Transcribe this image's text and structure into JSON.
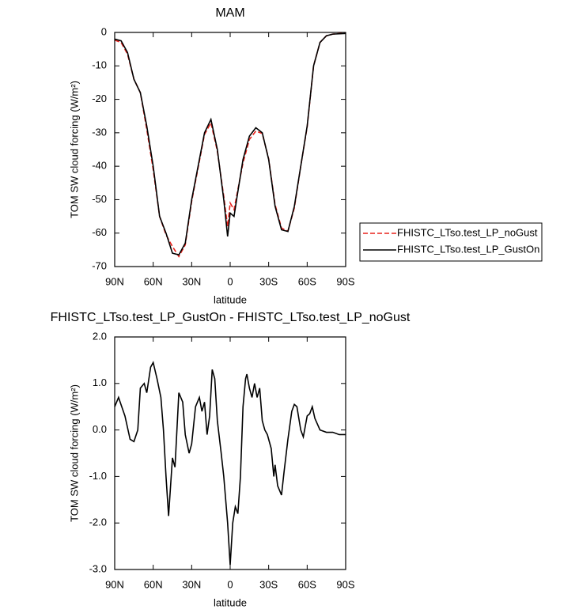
{
  "chart_data": [
    {
      "type": "line",
      "title": "MAM",
      "xlabel": "latitude",
      "ylabel": "TOM SW cloud forcing (W/m²)",
      "x": [
        90,
        85,
        80,
        75,
        70,
        65,
        60,
        55,
        50,
        45,
        40,
        35,
        30,
        25,
        20,
        15,
        10,
        5,
        2,
        0,
        -3,
        -5,
        -10,
        -15,
        -20,
        -25,
        -30,
        -35,
        -40,
        -45,
        -50,
        -55,
        -60,
        -65,
        -70,
        -75,
        -80,
        -90
      ],
      "series": [
        {
          "name": "FHISTC_LTso.test_LP_noGust",
          "color": "#e8221c",
          "linestyle": "dashed",
          "values": [
            -2.3,
            -3,
            -6.5,
            -14,
            -18,
            -29,
            -41,
            -55,
            -60.5,
            -64,
            -67,
            -63.5,
            -50.5,
            -40.5,
            -30.5,
            -27,
            -35.5,
            -49,
            -58,
            -51,
            -53,
            -49,
            -39,
            -32,
            -29.5,
            -30.2,
            -37.8,
            -51.5,
            -58.5,
            -59.4,
            -52.5,
            -40,
            -28.3,
            -10,
            -3,
            -1,
            -0.5,
            -0.2
          ]
        },
        {
          "name": "FHISTC_LTso.test_LP_GustOn",
          "color": "#000000",
          "linestyle": "solid",
          "values": [
            -2,
            -2.5,
            -6,
            -14,
            -18,
            -28,
            -40,
            -55,
            -60,
            -66,
            -66.5,
            -63,
            -50,
            -40,
            -30,
            -26,
            -35,
            -50,
            -61,
            -54,
            -55,
            -50,
            -38,
            -31,
            -28.5,
            -30,
            -38,
            -52,
            -59,
            -59.5,
            -52,
            -40,
            -28,
            -10,
            -3,
            -1,
            -0.5,
            -0.3
          ]
        }
      ],
      "xlim": [
        90,
        -90
      ],
      "ylim": [
        -70,
        0
      ],
      "xticks": [
        {
          "value": 90,
          "label": "90N"
        },
        {
          "value": 60,
          "label": "60N"
        },
        {
          "value": 30,
          "label": "30N"
        },
        0,
        {
          "value": -30,
          "label": "30S"
        },
        {
          "value": -60,
          "label": "60S"
        },
        {
          "value": -90,
          "label": "90S"
        }
      ],
      "yticks": [
        0,
        -10,
        -20,
        -30,
        -40,
        -50,
        -60,
        -70
      ],
      "legend": "right outside"
    },
    {
      "type": "line",
      "title": "FHISTC_LTso.test_LP_GustOn - FHISTC_LTso.test_LP_noGust",
      "xlabel": "latitude",
      "ylabel": "TOM SW cloud forcing (W/m²)",
      "x": [
        90,
        87,
        82,
        78,
        75,
        72,
        70,
        67,
        65,
        62,
        60,
        57,
        54,
        52,
        50,
        48,
        45,
        43,
        40,
        37,
        35,
        32,
        30,
        27,
        24,
        22,
        20,
        18,
        16,
        14,
        12,
        10,
        7,
        5,
        2,
        0,
        -2,
        -4,
        -6,
        -8,
        -10,
        -12,
        -13,
        -15,
        -17,
        -19,
        -21,
        -23,
        -25,
        -27,
        -29,
        -32,
        -34,
        -35,
        -37,
        -40,
        -42,
        -45,
        -48,
        -50,
        -52,
        -55,
        -57,
        -60,
        -62,
        -64,
        -66,
        -70,
        -75,
        -80,
        -85,
        -90
      ],
      "series": [
        {
          "color": "#000000",
          "linestyle": "solid",
          "values": [
            0.5,
            0.7,
            0.3,
            -0.2,
            -0.25,
            0,
            0.9,
            1.0,
            0.8,
            1.35,
            1.45,
            1.1,
            0.7,
            0,
            -1.0,
            -1.85,
            -0.6,
            -0.8,
            0.8,
            0.6,
            -0.1,
            -0.5,
            -0.3,
            0.5,
            0.7,
            0.4,
            0.6,
            -0.1,
            0.3,
            1.3,
            1.1,
            0.2,
            -0.5,
            -1.0,
            -2.0,
            -2.9,
            -2.0,
            -1.65,
            -1.8,
            -1.0,
            0.5,
            1.1,
            1.2,
            0.9,
            0.7,
            1.0,
            0.7,
            0.9,
            0.2,
            0,
            -0.1,
            -0.4,
            -1.0,
            -0.75,
            -1.2,
            -1.4,
            -0.9,
            -0.2,
            0.4,
            0.55,
            0.5,
            0.0,
            -0.15,
            0.3,
            0.35,
            0.5,
            0.25,
            0.0,
            -0.05,
            -0.05,
            -0.1,
            -0.1
          ]
        }
      ],
      "xlim": [
        90,
        -90
      ],
      "ylim": [
        -3,
        2
      ],
      "xticks": [
        {
          "value": 90,
          "label": "90N"
        },
        {
          "value": 60,
          "label": "60N"
        },
        {
          "value": 30,
          "label": "30N"
        },
        0,
        {
          "value": -30,
          "label": "30S"
        },
        {
          "value": -60,
          "label": "60S"
        },
        {
          "value": -90,
          "label": "90S"
        }
      ],
      "yticks": [
        {
          "value": 2,
          "label": "2.0"
        },
        {
          "value": 1,
          "label": "1.0"
        },
        {
          "value": 0,
          "label": "0.0"
        },
        {
          "value": -1,
          "label": "-1.0"
        },
        {
          "value": -2,
          "label": "-2.0"
        },
        {
          "value": -3,
          "label": "-3.0"
        }
      ]
    }
  ]
}
